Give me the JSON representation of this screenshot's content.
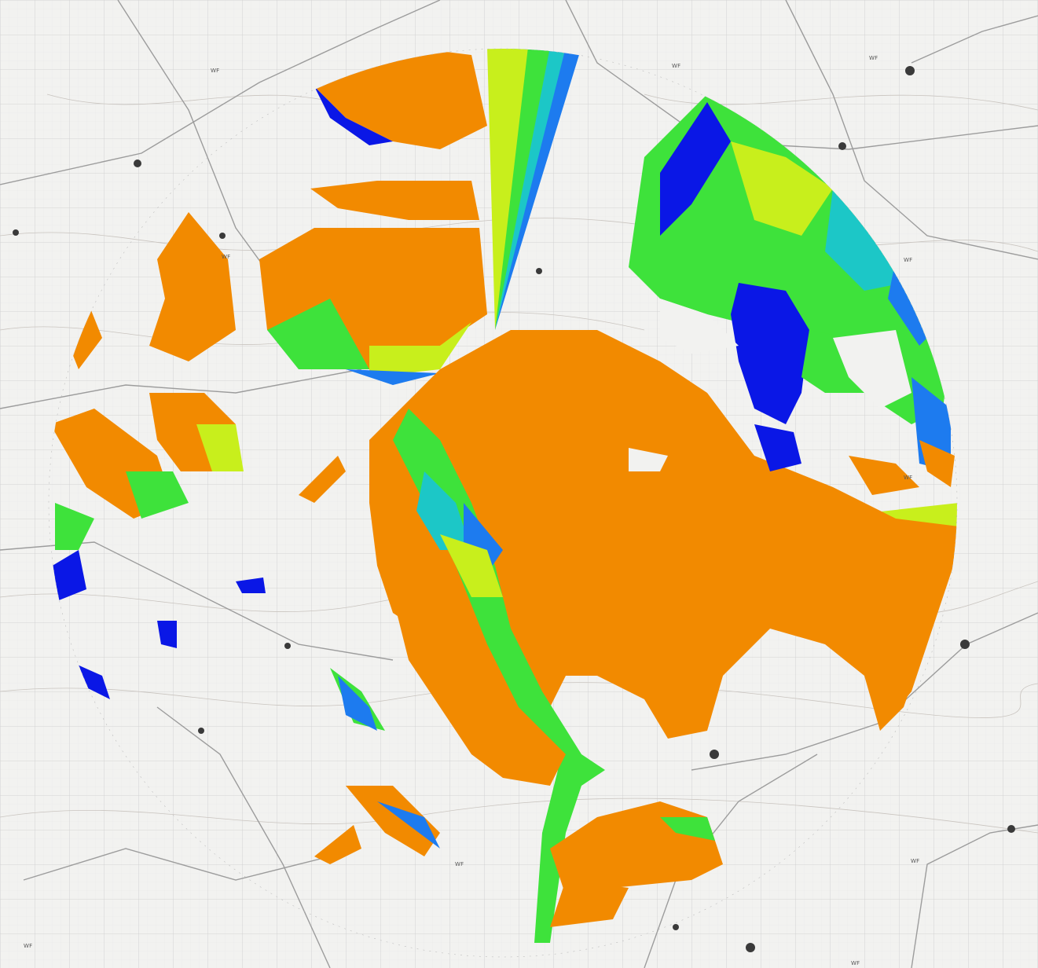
{
  "map": {
    "type": "radio-coverage / viewshed overlay on topographic base map",
    "base_map": "grayscale topographic map with grid, contours, roads and rivers",
    "coverage_shape": "circular",
    "colors": {
      "background": "#f2f2f0",
      "grid": "#cfcfcf",
      "roads": "#9a9a9a",
      "level_1": "#f28a00",
      "level_2": "#c8ef1c",
      "level_3": "#3ee23b",
      "level_4": "#1cc7c7",
      "level_5": "#1d7bef",
      "level_6": "#0a17e6"
    },
    "labels": {
      "wf_1": "WF",
      "wf_2": "WF",
      "wf_3": "WF",
      "wf_4": "WF",
      "wf_5": "WF",
      "wf_6": "WF",
      "wf_7": "WF",
      "wf_8": "WF",
      "wf_9": "WF",
      "wf_10": "WF"
    }
  }
}
